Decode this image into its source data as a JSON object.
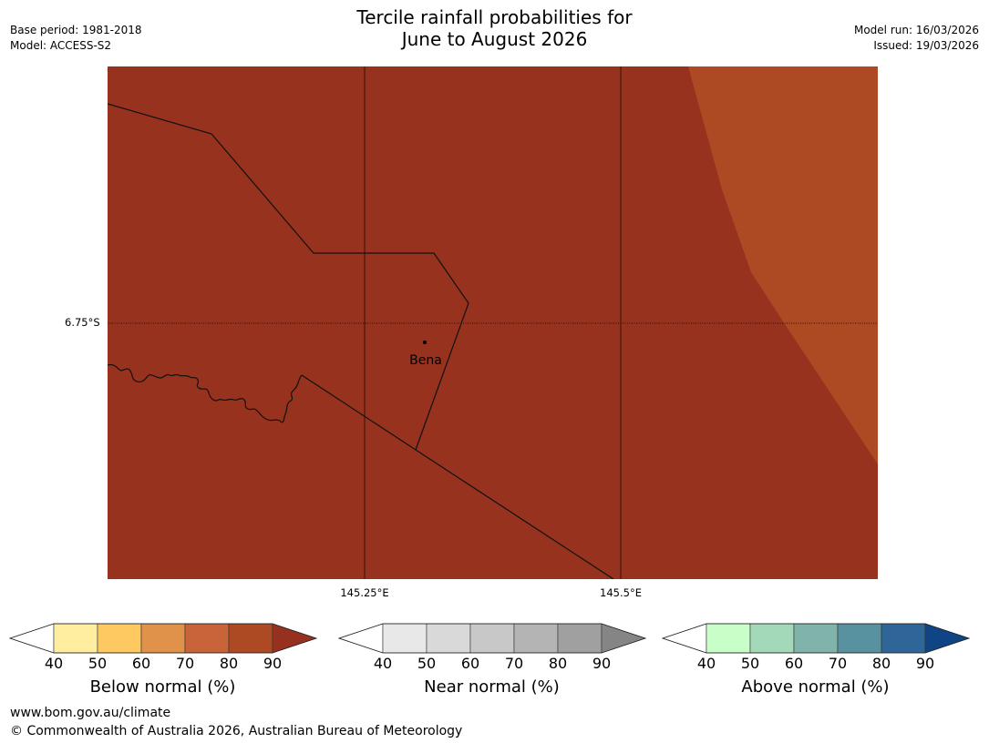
{
  "title_line1": "Tercile rainfall probabilities for",
  "title_line2": "June to August 2026",
  "base_period": "Base period: 1981-2018",
  "model": "Model: ACCESS-S2",
  "model_run": "Model run: 16/03/2026",
  "issued": "Issued: 19/03/2026",
  "map": {
    "lat_label": "6.75°S",
    "lon_labels": [
      "145.25°E",
      "145.5°E"
    ],
    "place": "Bena",
    "colors": {
      "dominant": "#97321f",
      "secondary": "#ad4a24"
    }
  },
  "colorbars": [
    {
      "label": "Below normal (%)",
      "ticks": [
        "40",
        "50",
        "60",
        "70",
        "80",
        "90"
      ],
      "colors": [
        "#ffffff",
        "#ffeda0",
        "#fec961",
        "#e0914a",
        "#c9643a",
        "#ad4a24",
        "#96311f"
      ]
    },
    {
      "label": "Near normal (%)",
      "ticks": [
        "40",
        "50",
        "60",
        "70",
        "80",
        "90"
      ],
      "colors": [
        "#ffffff",
        "#e8e8e8",
        "#d9d9d9",
        "#c8c8c8",
        "#b4b4b4",
        "#a0a0a0",
        "#858585"
      ]
    },
    {
      "label": "Above normal (%)",
      "ticks": [
        "40",
        "50",
        "60",
        "70",
        "80",
        "90"
      ],
      "colors": [
        "#ffffff",
        "#c8ffc8",
        "#a3d9b9",
        "#80b4ab",
        "#5892a0",
        "#2e6699",
        "#0f4584"
      ]
    }
  ],
  "footer_url": "www.bom.gov.au/climate",
  "footer_copyright": "© Commonwealth of Australia 2026, Australian Bureau of Meteorology"
}
